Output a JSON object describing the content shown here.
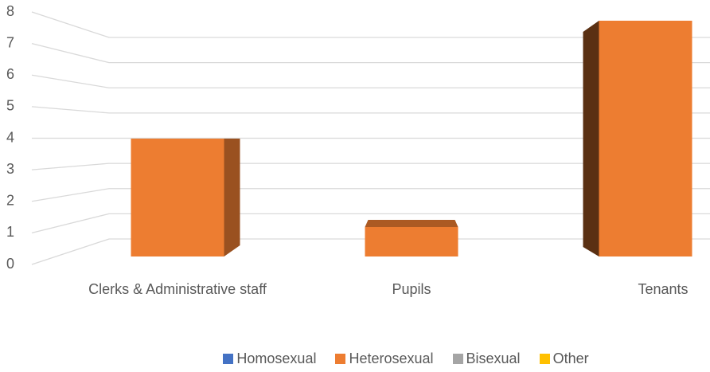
{
  "chart_data": {
    "type": "bar3d",
    "categories": [
      "Clerks & Administrative staff",
      "Pupils",
      "Tenants"
    ],
    "series": [
      {
        "name": "Homosexual",
        "color": "#4472c4",
        "values": [
          0,
          0,
          0
        ]
      },
      {
        "name": "Heterosexual",
        "color": "#ed7d31",
        "values": [
          4,
          1,
          8
        ]
      },
      {
        "name": "Bisexual",
        "color": "#a5a5a5",
        "values": [
          0,
          0,
          0
        ]
      },
      {
        "name": "Other",
        "color": "#ffc000",
        "values": [
          0,
          0,
          0
        ]
      }
    ],
    "ylim": [
      0,
      8
    ],
    "yticks": [
      0,
      1,
      2,
      3,
      4,
      5,
      6,
      7,
      8
    ],
    "grid": true
  }
}
